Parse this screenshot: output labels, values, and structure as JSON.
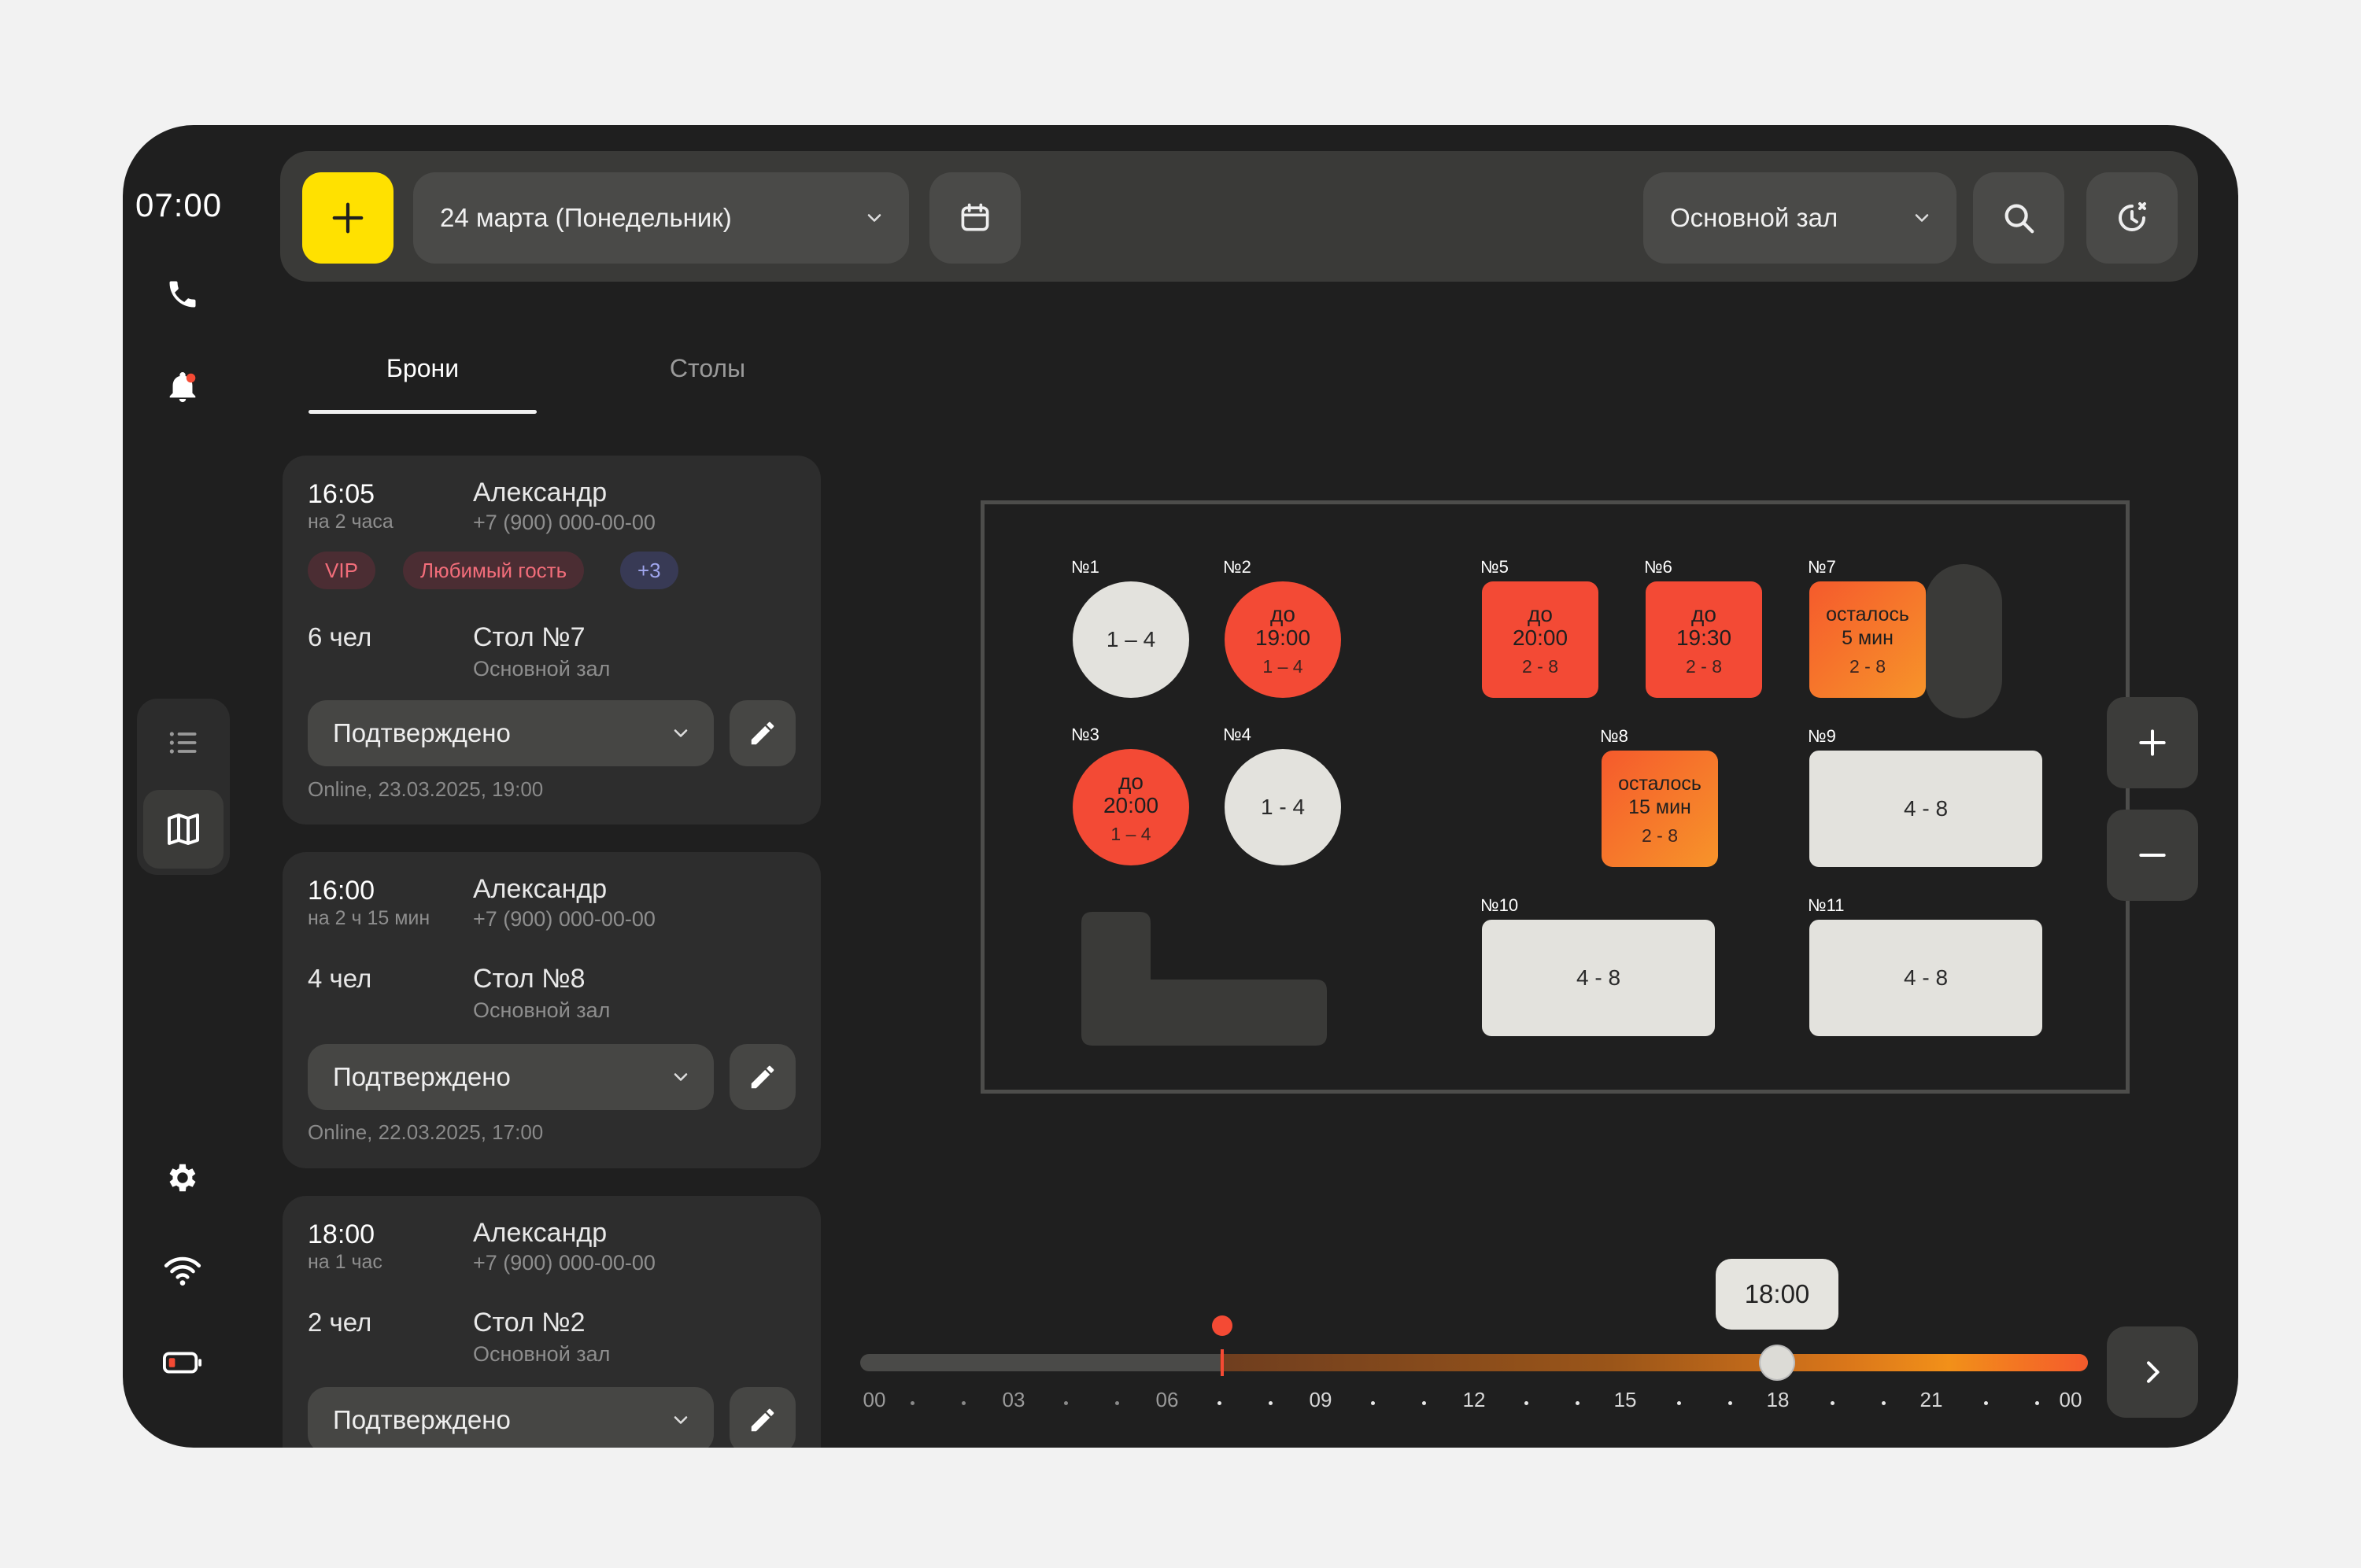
{
  "clock": "07:00",
  "header": {
    "date_label": "24 марта (Понедельник)",
    "hall_label": "Основной зал"
  },
  "tabs": [
    {
      "label": "Брони",
      "active": true
    },
    {
      "label": "Столы",
      "active": false
    }
  ],
  "bookings": [
    {
      "time": "16:05",
      "duration": "на 2 часа",
      "name": "Александр",
      "phone": "+7 (900) 000-00-00",
      "tags": [
        "VIP",
        "Любимый гость",
        "+3"
      ],
      "people": "6 чел",
      "table": "Стол №7",
      "hall": "Основной зал",
      "status": "Подтверждено",
      "source": "Online, 23.03.2025, 19:00"
    },
    {
      "time": "16:00",
      "duration": "на 2 ч 15 мин",
      "name": "Александр",
      "phone": "+7 (900) 000-00-00",
      "people": "4 чел",
      "table": "Стол №8",
      "hall": "Основной зал",
      "status": "Подтверждено",
      "source": "Online, 22.03.2025, 17:00"
    },
    {
      "time": "18:00",
      "duration": "на 1 час",
      "name": "Александр",
      "phone": "+7 (900) 000-00-00",
      "people": "2 чел",
      "table": "Стол №2",
      "hall": "Основной зал",
      "status": "Подтверждено"
    }
  ],
  "tables": {
    "t1": {
      "num": "№1",
      "cap": "1 – 4"
    },
    "t2": {
      "num": "№2",
      "line1": "до",
      "line2": "19:00",
      "cap": "1 – 4"
    },
    "t3": {
      "num": "№3",
      "line1": "до",
      "line2": "20:00",
      "cap": "1 – 4"
    },
    "t4": {
      "num": "№4",
      "cap": "1 - 4"
    },
    "t5": {
      "num": "№5",
      "line1": "до",
      "line2": "20:00",
      "cap": "2 - 8"
    },
    "t6": {
      "num": "№6",
      "line1": "до",
      "line2": "19:30",
      "cap": "2 - 8"
    },
    "t7": {
      "num": "№7",
      "line1": "осталось",
      "line2": "5 мин",
      "cap": "2 - 8"
    },
    "t8": {
      "num": "№8",
      "line1": "осталось",
      "line2": "15 мин",
      "cap": "2 - 8"
    },
    "t9": {
      "num": "№9",
      "cap": "4 - 8"
    },
    "t10": {
      "num": "№10",
      "cap": "4 - 8"
    },
    "t11": {
      "num": "№11",
      "cap": "4 - 8"
    }
  },
  "timeline": {
    "selected_time": "18:00",
    "labels": [
      "00",
      "03",
      "06",
      "09",
      "12",
      "15",
      "18",
      "21",
      "00"
    ]
  },
  "colors": {
    "accent": "#ffe100",
    "busy": "#f34a35",
    "ending": "#f7942a",
    "free": "#e3e2dd"
  }
}
